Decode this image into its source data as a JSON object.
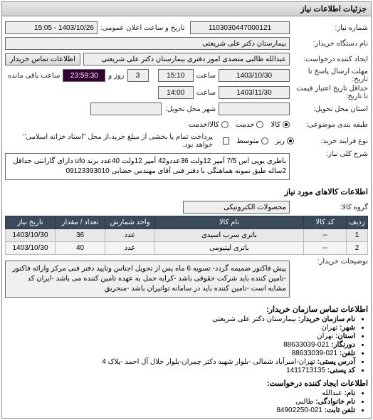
{
  "panel_title": "جزئیات اطلاعات نیاز",
  "fields": {
    "number_label": "شماره نیاز:",
    "number_value": "1103030447000121",
    "pubdate_label": "تاریخ و ساعت اعلان عمومی:",
    "pubdate_value": "1403/10/26 - 15:05",
    "orgname_label": "نام دستگاه خریدار:",
    "orgname_value": "بیمارستان دکتر علی شریعتی",
    "creator_label": "ایجاد کننده درخواست:",
    "creator_value": "عبدالله طالبی متصدی امور دفتری بیمارستان دکتر علی شریعتی",
    "contact_btn": "اطلاعات تماس خریدار",
    "deadline_label": "مهلت ارسال پاسخ تا تاریخ:",
    "deadline_date": "1403/10/30",
    "deadline_time_lbl": "ساعت",
    "deadline_time": "15:10",
    "days_value": "3",
    "days_lbl": "روز و",
    "remain_time": "23:59:30",
    "remain_lbl": "ساعت باقی مانده",
    "validity_label": "حداقل تاریخ اعتبار قیمت تا تاریخ:",
    "validity_date": "1403/11/30",
    "validity_time": "14:00",
    "province_label": "استان محل تحویل:",
    "city_label": "شهر محل تحویل:",
    "unit_label": "طبقه بندی موضوعی:",
    "buytype_label": "نوع فرایند خرید:",
    "desc_label": "شرح کلی نیاز:",
    "desc_value": "باطری یوپی اس 7/5 آمپر 12ولت 36عددو42 آمپر 12ولت 40عدد برند ufo دارای گارانتی حداقل 2ساله طبق نمونه هماهنگی با دفتر فنی آقای مهندس حضابی 09123393010",
    "items_header": "اطلاعات کالاهای مورد نیاز",
    "group_label": "گروه کالا:",
    "group_value": "محصولات الکترونیکی",
    "note_label": "توضیحات خریدار:",
    "note_value": "پیش فاکتور ضمیمه گردد- تسویه 6 ماه پس از تحویل اجناس وتایید دفتر فنی مرکز وارائه فاکتور -تامین کننده باید شرکت حقوقی باشد -کرایه حمل به عهده تامین کننده می باشد -ایران کد مشابه است -تامین کننده باید در سامانه توانیران باشد -منحربق",
    "contact_title1": "اطلاعات تماس سازمان خریدار:",
    "contact_title2": "اطلاعات ایجاد کننده درخواست:"
  },
  "radios": {
    "unit": [
      {
        "label": "کالا",
        "sel": true
      },
      {
        "label": "خدمت",
        "sel": false
      },
      {
        "label": "کالا/خدمت",
        "sel": false
      }
    ],
    "buytype": [
      {
        "label": "ریز",
        "sel": true
      },
      {
        "label": "متوسط",
        "sel": false
      }
    ],
    "paynote": "پرداخت تمام یا بخشی از مبلغ خرید،از محل \"اسناد خزانه اسلامی\" خواهد بود."
  },
  "table": {
    "cols": [
      "ردیف",
      "کد کالا",
      "نام کالا",
      "واحد شمارش",
      "تعداد / مقدار",
      "تاریخ نیاز"
    ],
    "rows": [
      [
        "1",
        "--",
        "باتری سرب اسیدی",
        "عدد",
        "36",
        "1403/10/30"
      ],
      [
        "2",
        "--",
        "باتری لیتیومی",
        "عدد",
        "40",
        "1403/10/30"
      ]
    ],
    "col_widths": [
      "30px",
      "60px",
      "auto",
      "70px",
      "70px",
      "70px"
    ]
  },
  "contacts1": [
    {
      "k": "نام سازمان خریدار:",
      "v": "بیمارستان دکتر علی شریعتی"
    },
    {
      "k": "شهر:",
      "v": "تهران"
    },
    {
      "k": "استان:",
      "v": "تهران"
    },
    {
      "k": "دورنگار:",
      "v": "021-88633039"
    },
    {
      "k": "تلفن:",
      "v": "021-88633039"
    },
    {
      "k": "آدرس پستی:",
      "v": "تهران-امیرآباد شمالی -بلوار شهید دکتر چمران-بلوار جلال آل احمد -پلاک 4"
    },
    {
      "k": "کد پستی:",
      "v": "1411713135"
    }
  ],
  "contacts2": [
    {
      "k": "نام:",
      "v": "عبدالله"
    },
    {
      "k": "نام خانوادگی:",
      "v": "طالبی"
    },
    {
      "k": "تلفن ثابت:",
      "v": "021-84902250"
    }
  ],
  "colors": {
    "th_bg": "#3a4a5a",
    "th_fg": "#ffffff"
  }
}
